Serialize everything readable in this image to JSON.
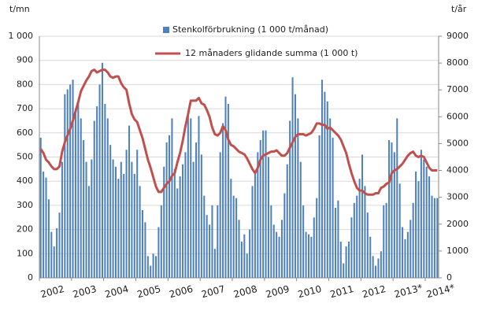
{
  "chart_data": {
    "type": "bar_line",
    "y_label": "t/mn",
    "y2_label": "t/år",
    "categories": [
      "2002",
      null,
      null,
      null,
      null,
      null,
      null,
      null,
      null,
      null,
      null,
      null,
      "2003",
      null,
      null,
      null,
      null,
      null,
      null,
      null,
      null,
      null,
      null,
      null,
      "2004",
      null,
      null,
      null,
      null,
      null,
      null,
      null,
      null,
      null,
      null,
      null,
      "2005",
      null,
      null,
      null,
      null,
      null,
      null,
      null,
      null,
      null,
      null,
      null,
      "2006",
      null,
      null,
      null,
      null,
      null,
      null,
      null,
      null,
      null,
      null,
      null,
      "2007",
      null,
      null,
      null,
      null,
      null,
      null,
      null,
      null,
      null,
      null,
      null,
      "2008",
      null,
      null,
      null,
      null,
      null,
      null,
      null,
      null,
      null,
      null,
      null,
      "2009",
      null,
      null,
      null,
      null,
      null,
      null,
      null,
      null,
      null,
      null,
      null,
      "2010",
      null,
      null,
      null,
      null,
      null,
      null,
      null,
      null,
      null,
      null,
      null,
      "2011",
      null,
      null,
      null,
      null,
      null,
      null,
      null,
      null,
      null,
      null,
      null,
      "2012",
      null,
      null,
      null,
      null,
      null,
      null,
      null,
      null,
      null,
      null,
      null,
      "2013*",
      null,
      null,
      null,
      null,
      null,
      null,
      null,
      null,
      null,
      null,
      null,
      "2014*",
      null,
      null,
      null,
      null
    ],
    "series": [
      {
        "name": "Stenkolförbrukning (1 000 t/månad)",
        "type": "bar",
        "color": "#4f81bd",
        "values": [
          580,
          440,
          415,
          325,
          190,
          130,
          205,
          270,
          480,
          760,
          780,
          800,
          820,
          700,
          730,
          660,
          570,
          480,
          380,
          490,
          650,
          710,
          800,
          890,
          720,
          660,
          550,
          490,
          460,
          410,
          480,
          430,
          530,
          630,
          480,
          430,
          530,
          380,
          280,
          230,
          90,
          50,
          100,
          90,
          210,
          300,
          460,
          560,
          590,
          660,
          450,
          370,
          420,
          470,
          520,
          680,
          660,
          480,
          560,
          670,
          510,
          340,
          260,
          220,
          300,
          120,
          300,
          520,
          640,
          750,
          720,
          410,
          340,
          330,
          240,
          150,
          180,
          100,
          200,
          380,
          440,
          520,
          570,
          610,
          610,
          500,
          300,
          220,
          190,
          170,
          240,
          350,
          470,
          650,
          830,
          760,
          660,
          480,
          300,
          190,
          180,
          170,
          250,
          330,
          590,
          820,
          770,
          730,
          660,
          580,
          290,
          320,
          150,
          60,
          130,
          150,
          250,
          310,
          340,
          410,
          510,
          380,
          270,
          170,
          90,
          50,
          80,
          110,
          300,
          310,
          570,
          560,
          520,
          660,
          390,
          210,
          160,
          190,
          240,
          310,
          440,
          400,
          530,
          490,
          460,
          420,
          340,
          330,
          330
        ]
      },
      {
        "name": "12 månaders glidande summa (1 000 t)",
        "type": "line",
        "axis": "y2",
        "color": "#c0504d",
        "values": [
          4800,
          4650,
          4400,
          4300,
          4150,
          4050,
          4050,
          4150,
          4700,
          5050,
          5300,
          5550,
          5850,
          6200,
          6550,
          6950,
          7150,
          7350,
          7500,
          7700,
          7750,
          7650,
          7700,
          7750,
          7750,
          7650,
          7500,
          7450,
          7500,
          7500,
          7250,
          7100,
          7000,
          6500,
          6100,
          5900,
          5800,
          5500,
          5200,
          4800,
          4400,
          4100,
          3750,
          3400,
          3200,
          3200,
          3350,
          3500,
          3600,
          3800,
          3900,
          4300,
          4650,
          5100,
          5650,
          6100,
          6600,
          6600,
          6600,
          6700,
          6500,
          6450,
          6250,
          6000,
          5600,
          5350,
          5300,
          5400,
          5650,
          5500,
          5150,
          4950,
          4900,
          4800,
          4700,
          4650,
          4600,
          4450,
          4250,
          4050,
          3900,
          4100,
          4400,
          4550,
          4600,
          4650,
          4700,
          4700,
          4750,
          4650,
          4550,
          4550,
          4650,
          4850,
          5050,
          5250,
          5350,
          5350,
          5350,
          5300,
          5350,
          5400,
          5550,
          5750,
          5750,
          5700,
          5700,
          5550,
          5600,
          5500,
          5400,
          5300,
          5150,
          4900,
          4650,
          4250,
          3900,
          3600,
          3350,
          3250,
          3250,
          3150,
          3100,
          3100,
          3100,
          3150,
          3150,
          3350,
          3400,
          3500,
          3550,
          3900,
          4000,
          4050,
          4150,
          4250,
          4400,
          4550,
          4650,
          4700,
          4550,
          4500,
          4550,
          4500,
          4300,
          4100,
          4000,
          4000,
          4000
        ]
      }
    ],
    "ylim": [
      0,
      1000
    ],
    "yticks": [
      0,
      100,
      200,
      300,
      400,
      500,
      600,
      700,
      800,
      900,
      {
        "value": 1000,
        "label": "1 000"
      }
    ],
    "y2lim": [
      0,
      9000
    ],
    "y2ticks": [
      0,
      1000,
      2000,
      3000,
      4000,
      5000,
      6000,
      7000,
      8000,
      9000
    ],
    "grid": true
  }
}
